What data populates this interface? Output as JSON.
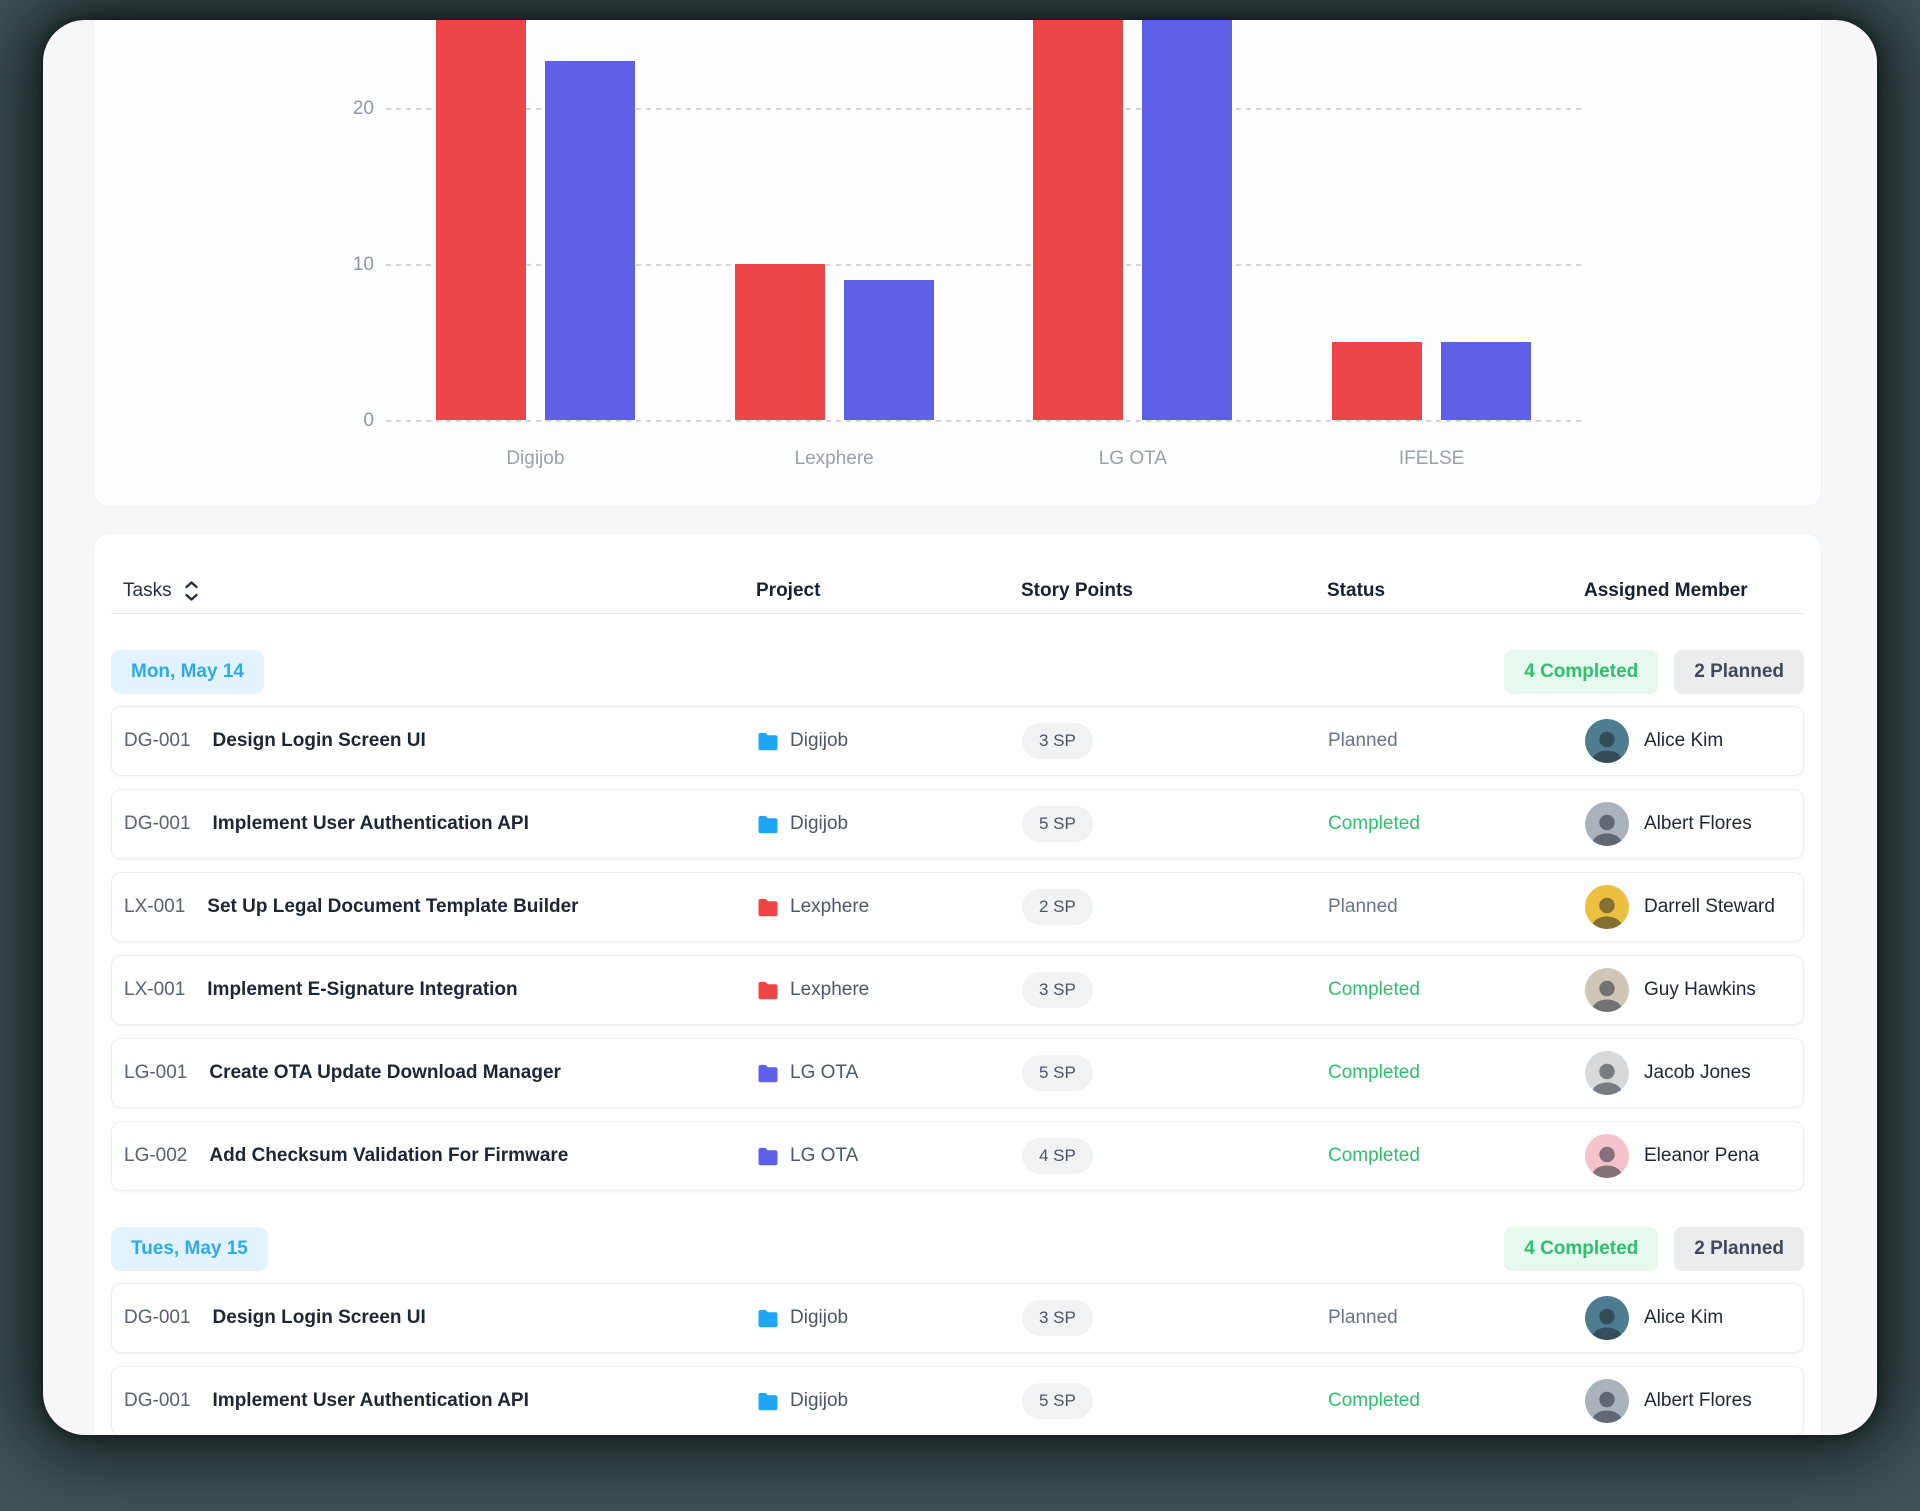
{
  "chart_data": {
    "type": "bar",
    "categories": [
      "Digijob",
      "Lexphere",
      "LG OTA",
      "IFELSE"
    ],
    "series": [
      {
        "name": "series-red",
        "color": "#ee4646",
        "values": [
          27,
          10,
          28,
          5
        ]
      },
      {
        "name": "series-indigo",
        "color": "#5f60e8",
        "values": [
          23,
          9,
          27.5,
          5
        ]
      }
    ],
    "title": "",
    "xlabel": "",
    "ylabel": "",
    "yticks": [
      0,
      10,
      20
    ],
    "ylim_visible": [
      0,
      26
    ],
    "grid": "dashed horizontal gridlines",
    "legend": "none",
    "note": "Digijob red bar and both LG OTA bars are clipped by the top edge of the visible area"
  },
  "table": {
    "columns": [
      "Tasks",
      "Project",
      "Story Points",
      "Status",
      "Assigned Member"
    ],
    "project_colors": {
      "Digijob": "#1ea6f4",
      "Lexphere": "#ee4646",
      "LG OTA": "#5f60e8"
    },
    "status_colors": {
      "completed": "#2ebf6e",
      "planned": "#6a7486"
    },
    "groups": [
      {
        "date": "Mon, May 14",
        "badges": {
          "completed": "4 Completed",
          "planned": "2 Planned"
        },
        "rows": [
          {
            "id": "DG-001",
            "title": "Design Login Screen UI",
            "project": "Digijob",
            "story_points": "3 SP",
            "status": "Planned",
            "status_type": "planned",
            "member": "Alice Kim",
            "avatar_color": "#4e7d92"
          },
          {
            "id": "DG-001",
            "title": "Implement User Authentication API",
            "project": "Digijob",
            "story_points": "5 SP",
            "status": "Completed",
            "status_type": "completed",
            "member": "Albert Flores",
            "avatar_color": "#aab3bc"
          },
          {
            "id": "LX-001",
            "title": "Set Up Legal Document Template Builder",
            "project": "Lexphere",
            "story_points": "2 SP",
            "status": "Planned",
            "status_type": "planned",
            "member": "Darrell Steward",
            "avatar_color": "#ecbf3e"
          },
          {
            "id": "LX-001",
            "title": "Implement E-Signature Integration",
            "project": "Lexphere",
            "story_points": "3 SP",
            "status": "Completed",
            "status_type": "completed",
            "member": "Guy Hawkins",
            "avatar_color": "#cfc6b8"
          },
          {
            "id": "LG-001",
            "title": "Create OTA Update Download Manager",
            "project": "LG OTA",
            "story_points": "5 SP",
            "status": "Completed",
            "status_type": "completed",
            "member": "Jacob Jones",
            "avatar_color": "#d6d8da"
          },
          {
            "id": "LG-002",
            "title": "Add Checksum Validation For Firmware",
            "project": "LG OTA",
            "story_points": "4 SP",
            "status": "Completed",
            "status_type": "completed",
            "member": "Eleanor Pena",
            "avatar_color": "#f3c2cb"
          }
        ]
      },
      {
        "date": "Tues, May 15",
        "badges": {
          "completed": "4 Completed",
          "planned": "2 Planned"
        },
        "rows": [
          {
            "id": "DG-001",
            "title": "Design Login Screen UI",
            "project": "Digijob",
            "story_points": "3 SP",
            "status": "Planned",
            "status_type": "planned",
            "member": "Alice Kim",
            "avatar_color": "#4e7d92"
          },
          {
            "id": "DG-001",
            "title": "Implement User Authentication API",
            "project": "Digijob",
            "story_points": "5 SP",
            "status": "Completed",
            "status_type": "completed",
            "member": "Albert Flores",
            "avatar_color": "#aab3bc"
          }
        ]
      }
    ]
  }
}
